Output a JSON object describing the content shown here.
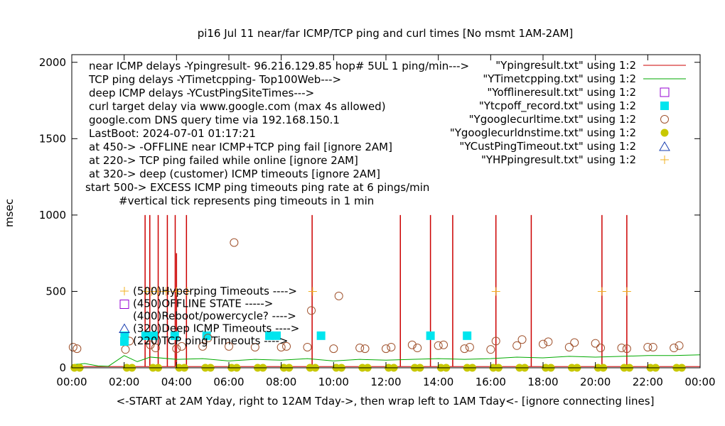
{
  "chart_data": {
    "type": "line",
    "title": "pi16 Jul 11  near/far ICMP/TCP ping and curl times [No msmt 1AM-2AM]",
    "ylabel": "msec",
    "xlabel": "<-START at 2AM Yday, right to 12AM Tday->, then wrap left to 1AM Tday<- [ignore connecting lines]",
    "xlim": [
      0,
      24
    ],
    "ylim": [
      0,
      2050
    ],
    "x_ticks": [
      "00:00",
      "02:00",
      "04:00",
      "06:00",
      "08:00",
      "10:00",
      "12:00",
      "14:00",
      "16:00",
      "18:00",
      "20:00",
      "22:00",
      "00:00"
    ],
    "y_ticks": [
      "0",
      "500",
      "1000",
      "1500",
      "2000"
    ],
    "annotations": [
      "near ICMP delays -Ypingresult- 96.216.129.85 hop# 5UL 1 ping/min--->",
      "TCP ping delays -YTimetcpping- Top100Web--->",
      "deep ICMP delays -YCustPingSiteTimes--->",
      "curl target delay via www.google.com (max 4s allowed)",
      "google.com DNS query time via 192.168.150.1",
      "LastBoot: 2024-07-01 01:17:21",
      "at 450-> -OFFLINE near ICMP+TCP ping fail [ignore 2AM]",
      "at 220-> TCP ping failed while online [ignore 2AM]",
      "at 320-> deep (customer) ICMP timeouts [ignore 2AM]",
      "start 500-> EXCESS ICMP ping timeouts ping rate at 6 pings/min",
      "#vertical tick represents ping timeouts in 1 min"
    ],
    "legend_inner": [
      "(500)Hyperping Timeouts ---->",
      "(450)OFFLINE STATE ----->",
      "(400)Reboot/powercycle? ---->",
      "(320)Deep ICMP Timeouts ---->",
      "(220)TCP ping Timeouts ---->"
    ],
    "colors": {
      "ping": "#cc0000",
      "tcp": "#00aa00",
      "offline": "#9400d3",
      "tcpoff": "#00e5ee",
      "curl": "#a0522d",
      "dns": "#c8c800",
      "deep": "#1a3fb0",
      "hp": "#f0b020"
    },
    "series": [
      {
        "name": "\"Ypingresult.txt\" using 1:2",
        "style": "line",
        "baseline": 8,
        "spikes": [
          [
            2.8,
            1000
          ],
          [
            2.98,
            1000
          ],
          [
            3.3,
            1000
          ],
          [
            3.65,
            1000
          ],
          [
            3.95,
            1000
          ],
          [
            4.0,
            750
          ],
          [
            4.38,
            1000
          ],
          [
            9.18,
            1000
          ],
          [
            12.55,
            1000
          ],
          [
            13.7,
            1000
          ],
          [
            14.55,
            1000
          ],
          [
            16.2,
            1000
          ],
          [
            17.55,
            1000
          ],
          [
            20.25,
            1000
          ],
          [
            21.2,
            1000
          ]
        ]
      },
      {
        "name": "\"YTimetcpping.txt\" using 1:2",
        "style": "line",
        "points": [
          [
            0,
            20
          ],
          [
            0.5,
            28
          ],
          [
            1.0,
            12
          ],
          [
            1.4,
            10
          ],
          [
            2.0,
            80
          ],
          [
            2.5,
            40
          ],
          [
            3.0,
            70
          ],
          [
            4.0,
            55
          ],
          [
            5.0,
            60
          ],
          [
            6.0,
            45
          ],
          [
            7.0,
            55
          ],
          [
            8.0,
            50
          ],
          [
            9.0,
            60
          ],
          [
            10.0,
            45
          ],
          [
            11.0,
            55
          ],
          [
            12.0,
            50
          ],
          [
            13.0,
            55
          ],
          [
            14.0,
            60
          ],
          [
            15.0,
            55
          ],
          [
            16.0,
            60
          ],
          [
            17.0,
            70
          ],
          [
            18.0,
            65
          ],
          [
            19.0,
            75
          ],
          [
            20.0,
            70
          ],
          [
            21.0,
            75
          ],
          [
            22.0,
            80
          ],
          [
            23.0,
            80
          ],
          [
            24.0,
            85
          ]
        ]
      },
      {
        "name": "\"Yofflineresult.txt\" using 1:2",
        "style": "open-square",
        "points": []
      },
      {
        "name": "\"Ytcpoff_record.txt\" using 1:2",
        "style": "filled-square",
        "points": [
          [
            2.02,
            210
          ],
          [
            2.82,
            210
          ],
          [
            3.12,
            210
          ],
          [
            3.93,
            210
          ],
          [
            5.15,
            210
          ],
          [
            7.55,
            210
          ],
          [
            7.82,
            210
          ],
          [
            9.52,
            210
          ],
          [
            13.7,
            210
          ],
          [
            15.1,
            210
          ]
        ]
      },
      {
        "name": "\"Ygooglecurltime.txt\" using 1:2",
        "style": "open-circle",
        "points": [
          [
            0.05,
            135
          ],
          [
            0.2,
            125
          ],
          [
            2.05,
            120
          ],
          [
            2.2,
            175
          ],
          [
            3.0,
            150
          ],
          [
            3.2,
            130
          ],
          [
            4.0,
            125
          ],
          [
            4.2,
            140
          ],
          [
            5.0,
            140
          ],
          [
            5.2,
            195
          ],
          [
            6.0,
            140
          ],
          [
            6.2,
            820
          ],
          [
            7.0,
            135
          ],
          [
            8.0,
            135
          ],
          [
            8.2,
            140
          ],
          [
            9.0,
            135
          ],
          [
            9.15,
            375
          ],
          [
            10.0,
            125
          ],
          [
            10.2,
            470
          ],
          [
            11.0,
            130
          ],
          [
            11.2,
            125
          ],
          [
            12.0,
            125
          ],
          [
            12.2,
            135
          ],
          [
            13.0,
            150
          ],
          [
            13.2,
            130
          ],
          [
            14.0,
            145
          ],
          [
            14.2,
            150
          ],
          [
            15.0,
            125
          ],
          [
            15.2,
            135
          ],
          [
            16.0,
            120
          ],
          [
            16.2,
            175
          ],
          [
            17.0,
            145
          ],
          [
            17.2,
            185
          ],
          [
            18.0,
            155
          ],
          [
            18.2,
            170
          ],
          [
            19.0,
            135
          ],
          [
            19.2,
            165
          ],
          [
            20.0,
            160
          ],
          [
            20.2,
            130
          ],
          [
            21.0,
            130
          ],
          [
            21.2,
            125
          ],
          [
            22.0,
            135
          ],
          [
            22.2,
            135
          ],
          [
            23.0,
            130
          ],
          [
            23.2,
            145
          ]
        ]
      },
      {
        "name": "\"Ygooglecurldnstime.txt\" using 1:2",
        "style": "filled-circle",
        "points": [
          [
            0.1,
            0
          ],
          [
            0.3,
            0
          ],
          [
            2.1,
            0
          ],
          [
            2.3,
            0
          ],
          [
            3.1,
            0
          ],
          [
            3.3,
            0
          ],
          [
            4.1,
            0
          ],
          [
            4.3,
            0
          ],
          [
            5.1,
            0
          ],
          [
            5.3,
            0
          ],
          [
            6.1,
            0
          ],
          [
            6.3,
            0
          ],
          [
            7.1,
            0
          ],
          [
            7.3,
            0
          ],
          [
            8.1,
            0
          ],
          [
            8.3,
            0
          ],
          [
            9.1,
            0
          ],
          [
            9.3,
            0
          ],
          [
            10.1,
            0
          ],
          [
            10.3,
            0
          ],
          [
            11.1,
            0
          ],
          [
            11.3,
            0
          ],
          [
            12.1,
            0
          ],
          [
            12.3,
            0
          ],
          [
            13.1,
            0
          ],
          [
            13.3,
            0
          ],
          [
            14.1,
            0
          ],
          [
            14.3,
            0
          ],
          [
            15.1,
            0
          ],
          [
            15.3,
            0
          ],
          [
            16.1,
            0
          ],
          [
            16.3,
            0
          ],
          [
            17.1,
            0
          ],
          [
            17.3,
            0
          ],
          [
            18.1,
            0
          ],
          [
            18.3,
            0
          ],
          [
            19.1,
            0
          ],
          [
            19.3,
            0
          ],
          [
            20.1,
            0
          ],
          [
            20.3,
            0
          ],
          [
            21.1,
            0
          ],
          [
            21.3,
            0
          ],
          [
            22.1,
            0
          ],
          [
            22.3,
            0
          ],
          [
            23.1,
            0
          ],
          [
            23.3,
            0
          ]
        ]
      },
      {
        "name": "\"YCustPingTimeout.txt\" using 1:2",
        "style": "open-triangle",
        "points": []
      },
      {
        "name": "\"YHPpingresult.txt\" using 1:2",
        "style": "plus",
        "points": [
          [
            2.85,
            500
          ],
          [
            3.05,
            500
          ],
          [
            3.28,
            500
          ],
          [
            3.6,
            500
          ],
          [
            4.0,
            500
          ],
          [
            4.4,
            500
          ],
          [
            9.2,
            500
          ],
          [
            16.2,
            500
          ],
          [
            20.25,
            500
          ],
          [
            21.2,
            500
          ]
        ]
      }
    ]
  }
}
